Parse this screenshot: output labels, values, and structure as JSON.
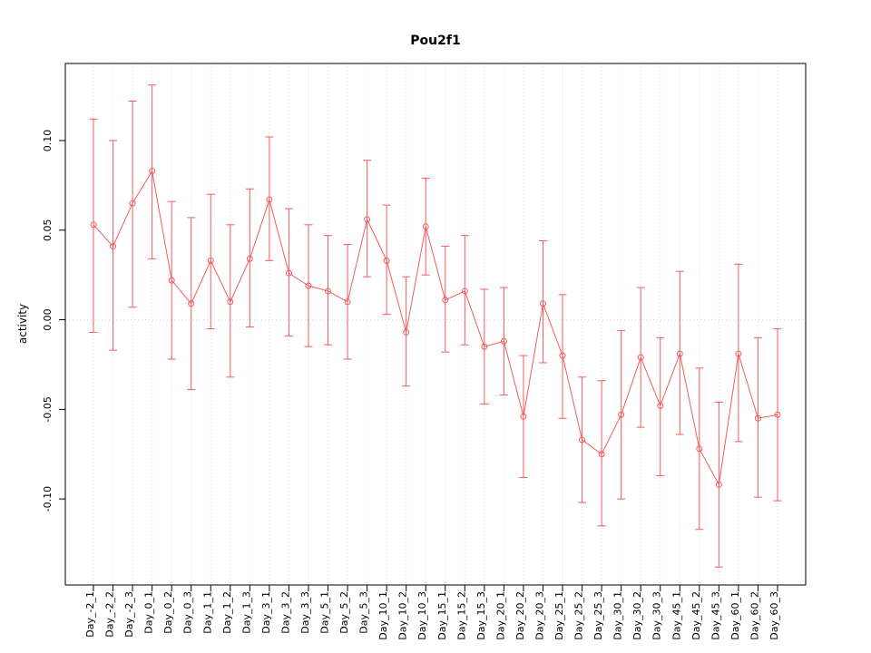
{
  "chart_data": {
    "type": "line",
    "title": "Pou2f1",
    "xlabel": "",
    "ylabel": "activity",
    "legend_position": "none",
    "grid": "dotted vertical gridline per category plus dotted zero line",
    "marker": "open-circle",
    "error_bars": true,
    "series_color": "#f25c5c",
    "grid_color": "#d9d9d9",
    "axis_color": "#000000",
    "ylim": [
      -0.148,
      0.143
    ],
    "yticks": [
      "-0.10",
      "-0.05",
      "0.00",
      "0.05",
      "0.10"
    ],
    "categories": [
      "Day_-2_1",
      "Day_-2_2",
      "Day_-2_3",
      "Day_0_1",
      "Day_0_2",
      "Day_0_3",
      "Day_1_1",
      "Day_1_2",
      "Day_1_3",
      "Day_3_1",
      "Day_3_2",
      "Day_3_3",
      "Day_5_1",
      "Day_5_2",
      "Day_5_3",
      "Day_10_1",
      "Day_10_2",
      "Day_10_3",
      "Day_15_1",
      "Day_15_2",
      "Day_15_3",
      "Day_20_1",
      "Day_20_2",
      "Day_20_3",
      "Day_25_1",
      "Day_25_2",
      "Day_25_3",
      "Day_30_1",
      "Day_30_2",
      "Day_30_3",
      "Day_45_1",
      "Day_45_2",
      "Day_45_3",
      "Day_60_1",
      "Day_60_2",
      "Day_60_3"
    ],
    "means": [
      0.053,
      0.041,
      0.065,
      0.083,
      0.022,
      0.009,
      0.033,
      0.01,
      0.034,
      0.067,
      0.026,
      0.019,
      0.016,
      0.01,
      0.056,
      0.033,
      -0.007,
      0.052,
      0.011,
      0.016,
      -0.015,
      -0.012,
      -0.054,
      0.009,
      -0.02,
      -0.067,
      -0.075,
      -0.053,
      -0.021,
      -0.048,
      -0.019,
      -0.072,
      -0.092,
      -0.019,
      -0.055,
      -0.053
    ],
    "lower": [
      -0.007,
      -0.017,
      0.007,
      0.034,
      -0.022,
      -0.039,
      -0.005,
      -0.032,
      -0.004,
      0.033,
      -0.009,
      -0.015,
      -0.014,
      -0.022,
      0.024,
      0.003,
      -0.037,
      0.025,
      -0.018,
      -0.014,
      -0.047,
      -0.042,
      -0.088,
      -0.024,
      -0.055,
      -0.102,
      -0.115,
      -0.1,
      -0.06,
      -0.087,
      -0.064,
      -0.117,
      -0.138,
      -0.068,
      -0.099,
      -0.101
    ],
    "upper": [
      0.112,
      0.1,
      0.122,
      0.131,
      0.066,
      0.057,
      0.07,
      0.053,
      0.073,
      0.102,
      0.062,
      0.053,
      0.047,
      0.042,
      0.089,
      0.064,
      0.024,
      0.079,
      0.041,
      0.047,
      0.017,
      0.018,
      -0.02,
      0.044,
      0.014,
      -0.032,
      -0.034,
      -0.006,
      0.018,
      -0.01,
      0.027,
      -0.027,
      -0.046,
      0.031,
      -0.01,
      -0.005
    ]
  }
}
